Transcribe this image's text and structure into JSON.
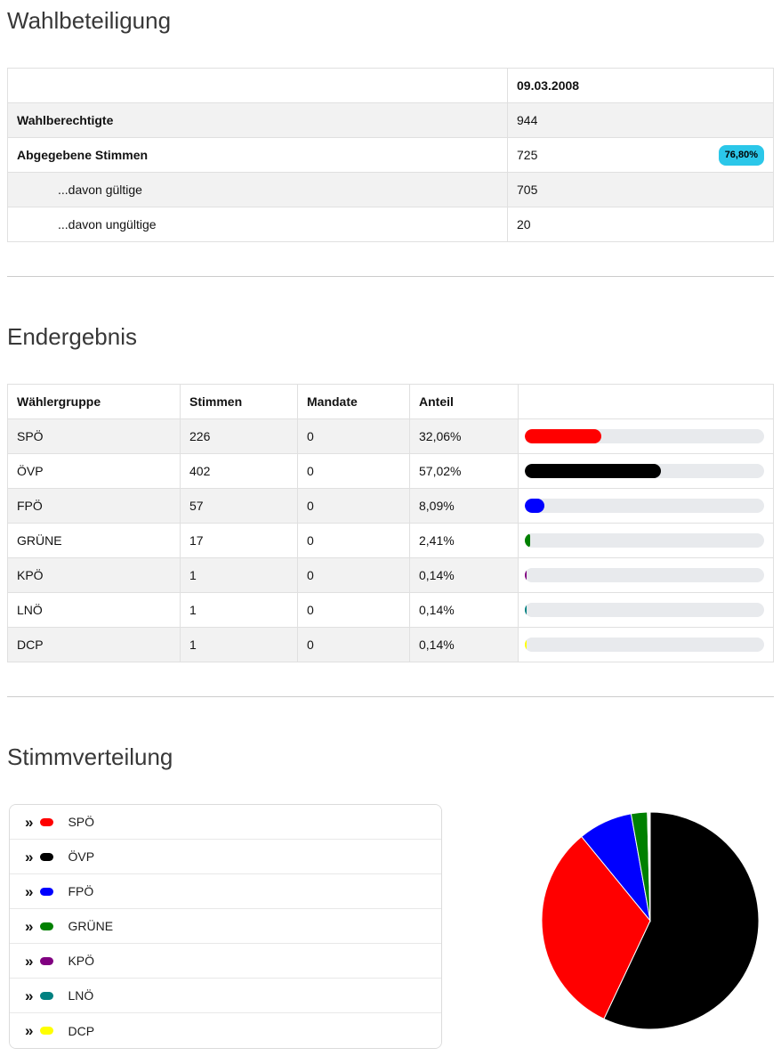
{
  "sections": {
    "turnout": {
      "title": "Wahlbeteiligung",
      "date_header": "09.03.2008",
      "rows": [
        {
          "label": "Wahlberechtigte",
          "value": "944",
          "bold": true
        },
        {
          "label": "Abgegebene Stimmen",
          "value": "725",
          "bold": true,
          "badge": "76,80%",
          "badge_color": "#2bc7e9"
        },
        {
          "label": "...davon gültige",
          "value": "705",
          "indent": true
        },
        {
          "label": "...davon ungültige",
          "value": "20",
          "indent": true
        }
      ]
    },
    "results": {
      "title": "Endergebnis",
      "columns": [
        "Wählergruppe",
        "Stimmen",
        "Mandate",
        "Anteil"
      ],
      "rows": [
        {
          "party": "SPÖ",
          "votes": "226",
          "mandates": "0",
          "share": "32,06%",
          "share_pct": 32.06,
          "color": "#ff0000"
        },
        {
          "party": "ÖVP",
          "votes": "402",
          "mandates": "0",
          "share": "57,02%",
          "share_pct": 57.02,
          "color": "#000000"
        },
        {
          "party": "FPÖ",
          "votes": "57",
          "mandates": "0",
          "share": "8,09%",
          "share_pct": 8.09,
          "color": "#0000ff"
        },
        {
          "party": "GRÜNE",
          "votes": "17",
          "mandates": "0",
          "share": "2,41%",
          "share_pct": 2.41,
          "color": "#008000"
        },
        {
          "party": "KPÖ",
          "votes": "1",
          "mandates": "0",
          "share": "0,14%",
          "share_pct": 0.14,
          "color": "#800080"
        },
        {
          "party": "LNÖ",
          "votes": "1",
          "mandates": "0",
          "share": "0,14%",
          "share_pct": 0.14,
          "color": "#008080"
        },
        {
          "party": "DCP",
          "votes": "1",
          "mandates": "0",
          "share": "0,14%",
          "share_pct": 0.14,
          "color": "#ffff00"
        }
      ]
    },
    "distribution": {
      "title": "Stimmverteilung",
      "chevron_glyph": "»",
      "legend": [
        {
          "label": "SPÖ",
          "color": "#ff0000"
        },
        {
          "label": "ÖVP",
          "color": "#000000"
        },
        {
          "label": "FPÖ",
          "color": "#0000ff"
        },
        {
          "label": "GRÜNE",
          "color": "#008000"
        },
        {
          "label": "KPÖ",
          "color": "#800080"
        },
        {
          "label": "LNÖ",
          "color": "#008080"
        },
        {
          "label": "DCP",
          "color": "#ffff00"
        }
      ]
    }
  },
  "chart_data": {
    "type": "pie",
    "title": "Stimmverteilung",
    "values_unit": "percent",
    "direction": "clockwise",
    "start_angle_deg": 0,
    "legend_position": "left",
    "slices": [
      {
        "label": "ÖVP",
        "value": 57.02,
        "color": "#000000"
      },
      {
        "label": "SPÖ",
        "value": 32.06,
        "color": "#ff0000"
      },
      {
        "label": "FPÖ",
        "value": 8.09,
        "color": "#0000ff"
      },
      {
        "label": "GRÜNE",
        "value": 2.41,
        "color": "#008000"
      },
      {
        "label": "KPÖ",
        "value": 0.14,
        "color": "#800080"
      },
      {
        "label": "LNÖ",
        "value": 0.14,
        "color": "#008080"
      },
      {
        "label": "DCP",
        "value": 0.14,
        "color": "#ffff00"
      }
    ]
  }
}
